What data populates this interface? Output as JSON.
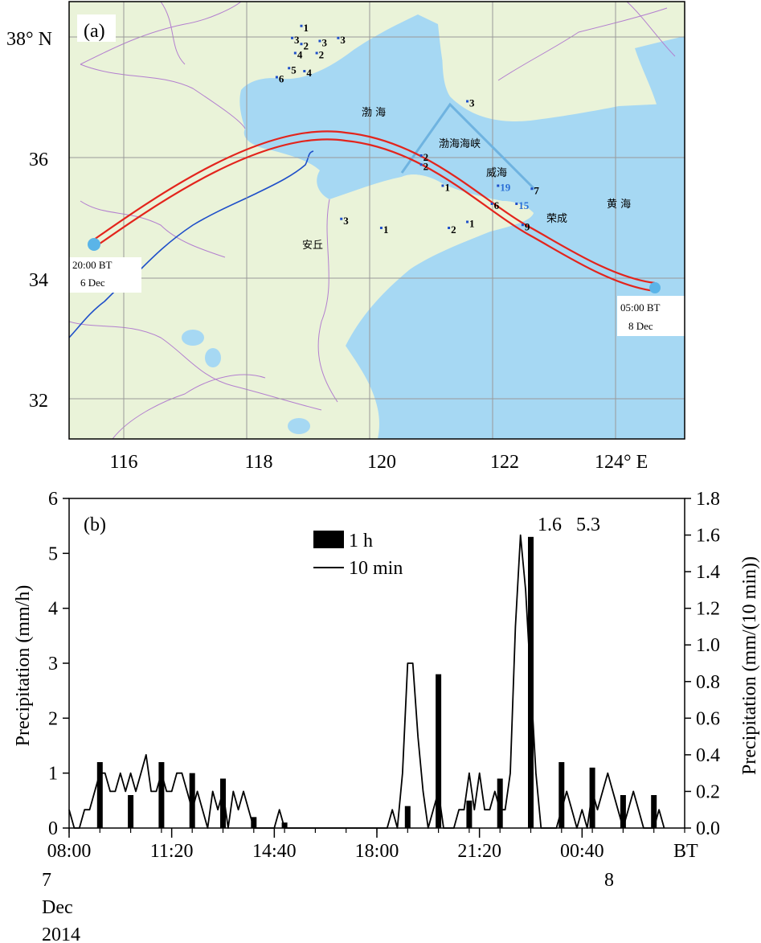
{
  "chart_data": [
    {
      "type": "map",
      "panel_label": "(a)",
      "lat_ticks": [
        "38° N",
        "36",
        "34",
        "32"
      ],
      "lon_ticks": [
        "116",
        "118",
        "120",
        "122",
        "124° E"
      ],
      "place_labels": [
        "渤 海",
        "渤海海峡",
        "威海",
        "荣成",
        "黄 海",
        "安丘"
      ],
      "track_start": {
        "line1": "20:00 BT",
        "line2": "6 Dec",
        "lon": 115.2,
        "lat": 34.6
      },
      "track_end": {
        "line1": "05:00 BT",
        "line2": "8 Dec",
        "lon": 124.5,
        "lat": 33.8
      },
      "station_values": [
        {
          "text": "1",
          "lon": 119.0,
          "lat": 38.15,
          "blue": false
        },
        {
          "text": "3",
          "lon": 118.85,
          "lat": 37.95,
          "blue": false
        },
        {
          "text": "2",
          "lon": 119.0,
          "lat": 37.85,
          "blue": false
        },
        {
          "text": "3",
          "lon": 119.3,
          "lat": 37.9,
          "blue": false
        },
        {
          "text": "3",
          "lon": 119.6,
          "lat": 37.95,
          "blue": false
        },
        {
          "text": "4",
          "lon": 118.9,
          "lat": 37.7,
          "blue": false
        },
        {
          "text": "2",
          "lon": 119.25,
          "lat": 37.7,
          "blue": false
        },
        {
          "text": "5",
          "lon": 118.8,
          "lat": 37.45,
          "blue": false
        },
        {
          "text": "4",
          "lon": 119.05,
          "lat": 37.4,
          "blue": false
        },
        {
          "text": "6",
          "lon": 118.6,
          "lat": 37.3,
          "blue": false
        },
        {
          "text": "3",
          "lon": 121.7,
          "lat": 36.9,
          "blue": false
        },
        {
          "text": "2",
          "lon": 120.95,
          "lat": 36.0,
          "blue": false
        },
        {
          "text": "2",
          "lon": 120.95,
          "lat": 35.85,
          "blue": false
        },
        {
          "text": "1",
          "lon": 121.3,
          "lat": 35.5,
          "blue": false
        },
        {
          "text": "19",
          "lon": 122.2,
          "lat": 35.5,
          "blue": true
        },
        {
          "text": "7",
          "lon": 122.75,
          "lat": 35.45,
          "blue": false
        },
        {
          "text": "6",
          "lon": 122.1,
          "lat": 35.2,
          "blue": false
        },
        {
          "text": "15",
          "lon": 122.5,
          "lat": 35.2,
          "blue": true
        },
        {
          "text": "3",
          "lon": 119.65,
          "lat": 34.95,
          "blue": false
        },
        {
          "text": "1",
          "lon": 120.3,
          "lat": 34.8,
          "blue": false
        },
        {
          "text": "1",
          "lon": 121.7,
          "lat": 34.9,
          "blue": false
        },
        {
          "text": "2",
          "lon": 121.4,
          "lat": 34.8,
          "blue": false
        },
        {
          "text": "9",
          "lon": 122.6,
          "lat": 34.85,
          "blue": false
        }
      ]
    },
    {
      "type": "bar+line",
      "panel_label": "(b)",
      "ylabel_left": "Precipitation (mm/h)",
      "ylabel_right": "Precipitation (mm/(10 min))",
      "yticks_left": [
        "0",
        "1",
        "2",
        "3",
        "4",
        "5",
        "6"
      ],
      "yticks_right": [
        "0.0",
        "0.2",
        "0.4",
        "0.6",
        "0.8",
        "1.0",
        "1.2",
        "1.4",
        "1.6",
        "1.8"
      ],
      "ylim_left": [
        0,
        6
      ],
      "ylim_right": [
        0,
        1.8
      ],
      "x_unit": "hours since 08:00 BT 7 Dec 2014",
      "xlim": [
        0,
        20
      ],
      "xticks": [
        {
          "hour": 0,
          "label": "08:00"
        },
        {
          "hour": 3.333,
          "label": "11:20"
        },
        {
          "hour": 6.667,
          "label": "14:40"
        },
        {
          "hour": 10,
          "label": "18:00"
        },
        {
          "hour": 13.333,
          "label": "21:20"
        },
        {
          "hour": 16.667,
          "label": "00:40"
        }
      ],
      "x_unit_label": "BT",
      "date_labels": [
        "7",
        "Dec",
        "2014"
      ],
      "date_label_2": "8",
      "legend": {
        "bar": "1 h",
        "line": "10 min"
      },
      "annotations": [
        "1.6",
        "5.3"
      ],
      "bars_1h": {
        "hours": [
          1,
          2,
          3,
          4,
          5,
          6,
          7,
          11,
          12,
          13,
          14,
          15,
          16,
          17,
          18,
          19
        ],
        "values": [
          1.2,
          0.6,
          1.2,
          1.0,
          0.9,
          0.2,
          0.1,
          0.4,
          2.8,
          0.5,
          0.9,
          5.3,
          1.2,
          1.1,
          0.6,
          0.6
        ]
      },
      "line_10min": [
        {
          "hour": 0.0,
          "value": 0.1
        },
        {
          "hour": 0.167,
          "value": 0.0
        },
        {
          "hour": 0.333,
          "value": 0.0
        },
        {
          "hour": 0.5,
          "value": 0.1
        },
        {
          "hour": 0.667,
          "value": 0.1
        },
        {
          "hour": 0.833,
          "value": 0.2
        },
        {
          "hour": 1.0,
          "value": 0.3
        },
        {
          "hour": 1.167,
          "value": 0.3
        },
        {
          "hour": 1.333,
          "value": 0.2
        },
        {
          "hour": 1.5,
          "value": 0.2
        },
        {
          "hour": 1.667,
          "value": 0.3
        },
        {
          "hour": 1.833,
          "value": 0.2
        },
        {
          "hour": 2.0,
          "value": 0.3
        },
        {
          "hour": 2.167,
          "value": 0.2
        },
        {
          "hour": 2.333,
          "value": 0.3
        },
        {
          "hour": 2.5,
          "value": 0.4
        },
        {
          "hour": 2.667,
          "value": 0.2
        },
        {
          "hour": 2.833,
          "value": 0.2
        },
        {
          "hour": 3.0,
          "value": 0.3
        },
        {
          "hour": 3.167,
          "value": 0.2
        },
        {
          "hour": 3.333,
          "value": 0.2
        },
        {
          "hour": 3.5,
          "value": 0.3
        },
        {
          "hour": 3.667,
          "value": 0.3
        },
        {
          "hour": 3.833,
          "value": 0.2
        },
        {
          "hour": 4.0,
          "value": 0.1
        },
        {
          "hour": 4.167,
          "value": 0.2
        },
        {
          "hour": 4.333,
          "value": 0.1
        },
        {
          "hour": 4.5,
          "value": 0.0
        },
        {
          "hour": 4.667,
          "value": 0.2
        },
        {
          "hour": 4.833,
          "value": 0.1
        },
        {
          "hour": 5.0,
          "value": 0.2
        },
        {
          "hour": 5.167,
          "value": 0.0
        },
        {
          "hour": 5.333,
          "value": 0.2
        },
        {
          "hour": 5.5,
          "value": 0.1
        },
        {
          "hour": 5.667,
          "value": 0.2
        },
        {
          "hour": 5.833,
          "value": 0.1
        },
        {
          "hour": 6.0,
          "value": 0.0
        },
        {
          "hour": 6.5,
          "value": 0.0
        },
        {
          "hour": 6.667,
          "value": 0.0
        },
        {
          "hour": 6.833,
          "value": 0.1
        },
        {
          "hour": 7.0,
          "value": 0.0
        },
        {
          "hour": 10.333,
          "value": 0.0
        },
        {
          "hour": 10.5,
          "value": 0.1
        },
        {
          "hour": 10.667,
          "value": 0.0
        },
        {
          "hour": 10.833,
          "value": 0.3
        },
        {
          "hour": 11.0,
          "value": 0.9
        },
        {
          "hour": 11.167,
          "value": 0.9
        },
        {
          "hour": 11.333,
          "value": 0.5
        },
        {
          "hour": 11.5,
          "value": 0.2
        },
        {
          "hour": 11.667,
          "value": 0.0
        },
        {
          "hour": 12.0,
          "value": 0.2
        },
        {
          "hour": 12.167,
          "value": 0.0
        },
        {
          "hour": 12.5,
          "value": 0.0
        },
        {
          "hour": 12.667,
          "value": 0.1
        },
        {
          "hour": 12.833,
          "value": 0.1
        },
        {
          "hour": 13.0,
          "value": 0.3
        },
        {
          "hour": 13.167,
          "value": 0.1
        },
        {
          "hour": 13.333,
          "value": 0.3
        },
        {
          "hour": 13.5,
          "value": 0.1
        },
        {
          "hour": 13.667,
          "value": 0.1
        },
        {
          "hour": 13.833,
          "value": 0.2
        },
        {
          "hour": 14.0,
          "value": 0.1
        },
        {
          "hour": 14.167,
          "value": 0.1
        },
        {
          "hour": 14.333,
          "value": 0.3
        },
        {
          "hour": 14.5,
          "value": 1.1
        },
        {
          "hour": 14.667,
          "value": 1.6
        },
        {
          "hour": 14.833,
          "value": 1.3
        },
        {
          "hour": 15.0,
          "value": 0.8
        },
        {
          "hour": 15.167,
          "value": 0.3
        },
        {
          "hour": 15.333,
          "value": 0.0
        },
        {
          "hour": 15.5,
          "value": 0.0
        },
        {
          "hour": 15.667,
          "value": 0.0
        },
        {
          "hour": 15.833,
          "value": 0.0
        },
        {
          "hour": 16.0,
          "value": 0.1
        },
        {
          "hour": 16.167,
          "value": 0.2
        },
        {
          "hour": 16.333,
          "value": 0.1
        },
        {
          "hour": 16.5,
          "value": 0.0
        },
        {
          "hour": 16.667,
          "value": 0.1
        },
        {
          "hour": 16.833,
          "value": 0.0
        },
        {
          "hour": 17.0,
          "value": 0.2
        },
        {
          "hour": 17.167,
          "value": 0.1
        },
        {
          "hour": 17.333,
          "value": 0.2
        },
        {
          "hour": 17.5,
          "value": 0.3
        },
        {
          "hour": 17.667,
          "value": 0.2
        },
        {
          "hour": 17.833,
          "value": 0.1
        },
        {
          "hour": 18.0,
          "value": 0.0
        },
        {
          "hour": 18.167,
          "value": 0.1
        },
        {
          "hour": 18.333,
          "value": 0.2
        },
        {
          "hour": 18.5,
          "value": 0.1
        },
        {
          "hour": 18.667,
          "value": 0.0
        },
        {
          "hour": 19.0,
          "value": 0.0
        },
        {
          "hour": 19.167,
          "value": 0.1
        },
        {
          "hour": 19.333,
          "value": 0.0
        }
      ]
    }
  ]
}
